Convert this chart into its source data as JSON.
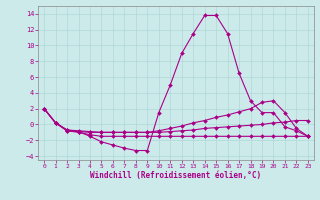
{
  "xlabel": "Windchill (Refroidissement éolien,°C)",
  "background_color": "#cceaea",
  "grid_color": "#aadddd",
  "line_color": "#aa0088",
  "xlim": [
    -0.5,
    23.5
  ],
  "ylim": [
    -4.5,
    15.0
  ],
  "yticks": [
    -4,
    -2,
    0,
    2,
    4,
    6,
    8,
    10,
    12,
    14
  ],
  "xticks": [
    0,
    1,
    2,
    3,
    4,
    5,
    6,
    7,
    8,
    9,
    10,
    11,
    12,
    13,
    14,
    15,
    16,
    17,
    18,
    19,
    20,
    21,
    22,
    23
  ],
  "lines": [
    {
      "x": [
        0,
        1,
        2,
        3,
        4,
        5,
        6,
        7,
        8,
        9,
        10,
        11,
        12,
        13,
        14,
        15,
        16,
        17,
        18,
        19,
        20,
        21,
        22,
        23
      ],
      "y": [
        2.0,
        0.2,
        -0.8,
        -0.9,
        -1.5,
        -2.2,
        -2.6,
        -3.0,
        -3.3,
        -3.3,
        1.5,
        5.0,
        9.0,
        11.5,
        13.8,
        13.8,
        11.5,
        6.5,
        3.0,
        1.5,
        1.5,
        -0.3,
        -0.8,
        -1.5
      ]
    },
    {
      "x": [
        0,
        1,
        2,
        3,
        4,
        5,
        6,
        7,
        8,
        9,
        10,
        11,
        12,
        13,
        14,
        15,
        16,
        17,
        18,
        19,
        20,
        21,
        22,
        23
      ],
      "y": [
        2.0,
        0.2,
        -0.7,
        -0.8,
        -0.9,
        -1.0,
        -1.0,
        -1.0,
        -1.0,
        -1.0,
        -0.8,
        -0.5,
        -0.2,
        0.2,
        0.5,
        0.9,
        1.2,
        1.6,
        2.0,
        2.8,
        3.0,
        1.5,
        -0.5,
        -1.5
      ]
    },
    {
      "x": [
        0,
        1,
        2,
        3,
        4,
        5,
        6,
        7,
        8,
        9,
        10,
        11,
        12,
        13,
        14,
        15,
        16,
        17,
        18,
        19,
        20,
        21,
        22,
        23
      ],
      "y": [
        2.0,
        0.2,
        -0.7,
        -0.9,
        -1.0,
        -1.0,
        -1.0,
        -1.0,
        -1.0,
        -1.0,
        -1.0,
        -0.9,
        -0.8,
        -0.7,
        -0.5,
        -0.4,
        -0.3,
        -0.2,
        -0.1,
        0.0,
        0.2,
        0.3,
        0.5,
        0.5
      ]
    },
    {
      "x": [
        0,
        1,
        2,
        3,
        4,
        5,
        6,
        7,
        8,
        9,
        10,
        11,
        12,
        13,
        14,
        15,
        16,
        17,
        18,
        19,
        20,
        21,
        22,
        23
      ],
      "y": [
        2.0,
        0.2,
        -0.8,
        -1.0,
        -1.3,
        -1.5,
        -1.5,
        -1.5,
        -1.5,
        -1.5,
        -1.5,
        -1.5,
        -1.5,
        -1.5,
        -1.5,
        -1.5,
        -1.5,
        -1.5,
        -1.5,
        -1.5,
        -1.5,
        -1.5,
        -1.5,
        -1.5
      ]
    }
  ]
}
